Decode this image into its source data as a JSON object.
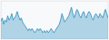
{
  "chart_data": {
    "type": "area",
    "values": [
      25,
      28,
      22,
      26,
      24,
      30,
      26,
      28,
      32,
      26,
      28,
      30,
      34,
      30,
      26,
      28,
      24,
      22,
      20,
      18,
      16,
      18,
      16,
      18,
      16,
      14,
      16,
      18,
      16,
      18,
      16,
      14,
      16,
      14,
      16,
      14,
      16,
      18,
      16,
      14,
      16,
      18,
      20,
      22,
      26,
      32,
      28,
      24,
      26,
      28,
      30,
      34,
      38,
      32,
      28,
      32,
      36,
      34,
      30,
      28,
      32,
      34,
      30,
      28,
      32,
      34,
      32,
      28,
      26,
      30,
      32,
      30,
      28,
      32,
      30,
      28,
      32,
      36,
      32,
      28
    ],
    "color": "#2b8cbe",
    "ylim": [
      8,
      44
    ],
    "tick_labels": false
  }
}
